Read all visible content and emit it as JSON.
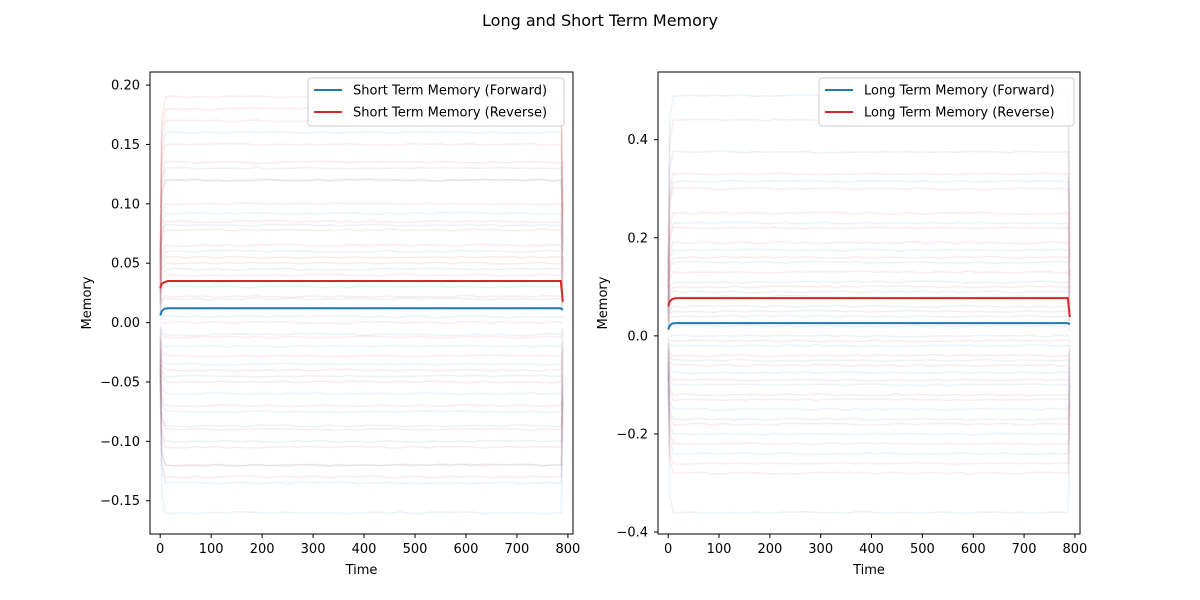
{
  "figure": {
    "title": "Long and Short Term Memory"
  },
  "chart_data": [
    {
      "type": "line",
      "xlabel": "Time",
      "ylabel": "Memory",
      "xlim": [
        -20,
        810
      ],
      "ylim": [
        -0.178,
        0.211
      ],
      "xticks": [
        0,
        100,
        200,
        300,
        400,
        500,
        600,
        700,
        800
      ],
      "xtick_labels": [
        "0",
        "100",
        "200",
        "300",
        "400",
        "500",
        "600",
        "700",
        "800"
      ],
      "yticks": [
        -0.15,
        -0.1,
        -0.05,
        0.0,
        0.05,
        0.1,
        0.15,
        0.2
      ],
      "ytick_labels": [
        "−0.15",
        "−0.10",
        "−0.05",
        "0.00",
        "0.05",
        "0.10",
        "0.15",
        "0.20"
      ],
      "grid": false,
      "legend_position": "top-right",
      "x_end": 790,
      "series": [
        {
          "name": "Short Term Memory (Forward)",
          "color": "#1f77b4",
          "start": 0.006,
          "plateau": 0.012
        },
        {
          "name": "Short Term Memory (Reverse)",
          "color": "#d62728",
          "start": 0.029,
          "plateau": 0.035
        }
      ],
      "background_traces": {
        "forward": {
          "color": "#1f77b4",
          "levels": [
            0.16,
            0.13,
            0.12,
            0.092,
            0.082,
            0.06,
            0.045,
            0.03,
            0.02,
            0.005,
            -0.01,
            -0.02,
            -0.035,
            -0.045,
            -0.06,
            -0.075,
            -0.087,
            -0.1,
            -0.12,
            -0.135,
            -0.16
          ]
        },
        "reverse": {
          "color": "#d62728",
          "levels": [
            0.19,
            0.18,
            0.17,
            0.15,
            0.135,
            0.12,
            0.1,
            0.085,
            0.078,
            0.065,
            0.055,
            0.05,
            0.04,
            0.022,
            0.0,
            -0.012,
            -0.028,
            -0.04,
            -0.05,
            -0.07,
            -0.09,
            -0.105,
            -0.12,
            -0.13
          ]
        }
      }
    },
    {
      "type": "line",
      "xlabel": "Time",
      "ylabel": "Memory",
      "xlim": [
        -20,
        810
      ],
      "ylim": [
        -0.404,
        0.538
      ],
      "xticks": [
        0,
        100,
        200,
        300,
        400,
        500,
        600,
        700,
        800
      ],
      "xtick_labels": [
        "0",
        "100",
        "200",
        "300",
        "400",
        "500",
        "600",
        "700",
        "800"
      ],
      "yticks": [
        -0.4,
        -0.2,
        0.0,
        0.2,
        0.4
      ],
      "ytick_labels": [
        "−0.4",
        "−0.2",
        "0.0",
        "0.2",
        "0.4"
      ],
      "grid": false,
      "legend_position": "top-right",
      "x_end": 790,
      "series": [
        {
          "name": "Long Term Memory (Forward)",
          "color": "#1f77b4",
          "start": 0.013,
          "plateau": 0.026
        },
        {
          "name": "Long Term Memory (Reverse)",
          "color": "#d62728",
          "start": 0.06,
          "plateau": 0.077
        }
      ],
      "background_traces": {
        "forward": {
          "color": "#1f77b4",
          "levels": [
            0.49,
            0.375,
            0.315,
            0.23,
            0.175,
            0.15,
            0.11,
            0.09,
            0.06,
            0.04,
            0.0,
            -0.02,
            -0.05,
            -0.075,
            -0.1,
            -0.13,
            -0.15,
            -0.17,
            -0.2,
            -0.24,
            -0.36
          ]
        },
        "reverse": {
          "color": "#d62728",
          "levels": [
            0.44,
            0.33,
            0.3,
            0.25,
            0.22,
            0.19,
            0.16,
            0.13,
            0.1,
            0.08,
            0.05,
            0.02,
            -0.01,
            -0.04,
            -0.06,
            -0.09,
            -0.12,
            -0.18,
            -0.22,
            -0.26,
            -0.28
          ]
        }
      }
    }
  ]
}
